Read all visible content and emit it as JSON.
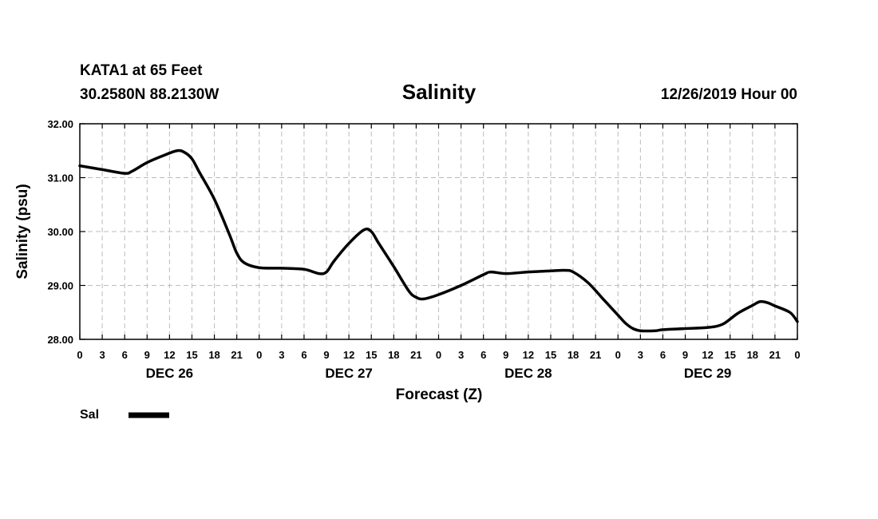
{
  "header": {
    "station": "KATA1 at 65 Feet",
    "location": "30.2580N 88.2130W",
    "title": "Salinity",
    "issued": "12/26/2019 Hour 00"
  },
  "chart_data": {
    "type": "line",
    "title": "Salinity",
    "xlabel": "Forecast (Z)",
    "ylabel": "Salinity (psu)",
    "ylim": [
      28,
      32
    ],
    "yticks": [
      "28.00",
      "29.00",
      "30.00",
      "31.00",
      "32.00"
    ],
    "x_hours_range": [
      0,
      96
    ],
    "x_tick_labels": [
      "0",
      "3",
      "6",
      "9",
      "12",
      "15",
      "18",
      "21",
      "0",
      "3",
      "6",
      "9",
      "12",
      "15",
      "18",
      "21",
      "0",
      "3",
      "6",
      "9",
      "12",
      "15",
      "18",
      "21",
      "0",
      "3",
      "6",
      "9",
      "12",
      "15",
      "18",
      "21",
      "0"
    ],
    "day_labels": [
      "DEC 26",
      "DEC 27",
      "DEC 28",
      "DEC 29"
    ],
    "grid": true,
    "legend": {
      "position": "bottom-left",
      "entries": [
        "Sal"
      ]
    },
    "series": [
      {
        "name": "Sal",
        "color": "#000000",
        "points": [
          [
            0,
            31.22
          ],
          [
            3,
            31.15
          ],
          [
            6,
            31.08
          ],
          [
            7,
            31.12
          ],
          [
            9,
            31.28
          ],
          [
            11,
            31.4
          ],
          [
            13,
            31.5
          ],
          [
            14,
            31.47
          ],
          [
            15,
            31.35
          ],
          [
            16,
            31.1
          ],
          [
            18,
            30.6
          ],
          [
            20,
            29.95
          ],
          [
            21,
            29.6
          ],
          [
            22,
            29.42
          ],
          [
            24,
            29.33
          ],
          [
            27,
            29.32
          ],
          [
            30,
            29.3
          ],
          [
            32,
            29.22
          ],
          [
            33,
            29.25
          ],
          [
            34,
            29.45
          ],
          [
            36,
            29.78
          ],
          [
            38,
            30.03
          ],
          [
            39,
            30.0
          ],
          [
            40,
            29.78
          ],
          [
            42,
            29.35
          ],
          [
            44,
            28.9
          ],
          [
            45,
            28.78
          ],
          [
            46,
            28.75
          ],
          [
            48,
            28.83
          ],
          [
            51,
            29.0
          ],
          [
            54,
            29.2
          ],
          [
            55,
            29.25
          ],
          [
            57,
            29.22
          ],
          [
            60,
            29.25
          ],
          [
            63,
            29.27
          ],
          [
            65,
            29.28
          ],
          [
            66,
            29.25
          ],
          [
            68,
            29.05
          ],
          [
            70,
            28.75
          ],
          [
            72,
            28.45
          ],
          [
            73,
            28.3
          ],
          [
            74,
            28.2
          ],
          [
            75,
            28.16
          ],
          [
            77,
            28.16
          ],
          [
            78,
            28.18
          ],
          [
            81,
            28.2
          ],
          [
            84,
            28.22
          ],
          [
            86,
            28.28
          ],
          [
            88,
            28.48
          ],
          [
            90,
            28.63
          ],
          [
            91,
            28.7
          ],
          [
            92,
            28.68
          ],
          [
            93,
            28.62
          ],
          [
            95,
            28.5
          ],
          [
            96,
            28.33
          ]
        ]
      }
    ]
  }
}
